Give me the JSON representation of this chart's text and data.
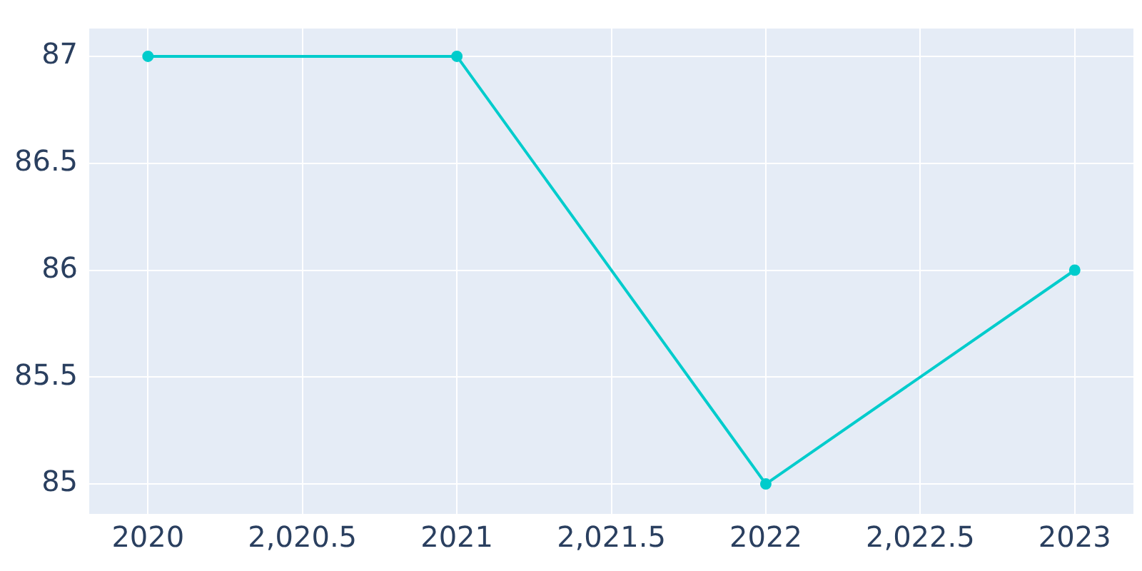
{
  "chart_data": {
    "type": "line",
    "x": [
      2020,
      2021,
      2022,
      2023
    ],
    "series": [
      {
        "color": "#00cccc",
        "values": [
          87,
          87,
          85,
          86
        ]
      }
    ],
    "xlim": [
      2019.81,
      2023.19
    ],
    "xticks": [
      2020,
      {
        "value": 2020.5,
        "label": "2,020.5"
      },
      2021,
      {
        "value": 2021.5,
        "label": "2,021.5"
      },
      2022,
      {
        "value": 2022.5,
        "label": "2,022.5"
      },
      2023
    ],
    "ylim": [
      84.86,
      87.13
    ],
    "yticks": [
      85,
      85.5,
      86,
      86.5,
      87
    ],
    "grid": true,
    "legend": false,
    "marker": "circle",
    "line_style": "solid"
  }
}
